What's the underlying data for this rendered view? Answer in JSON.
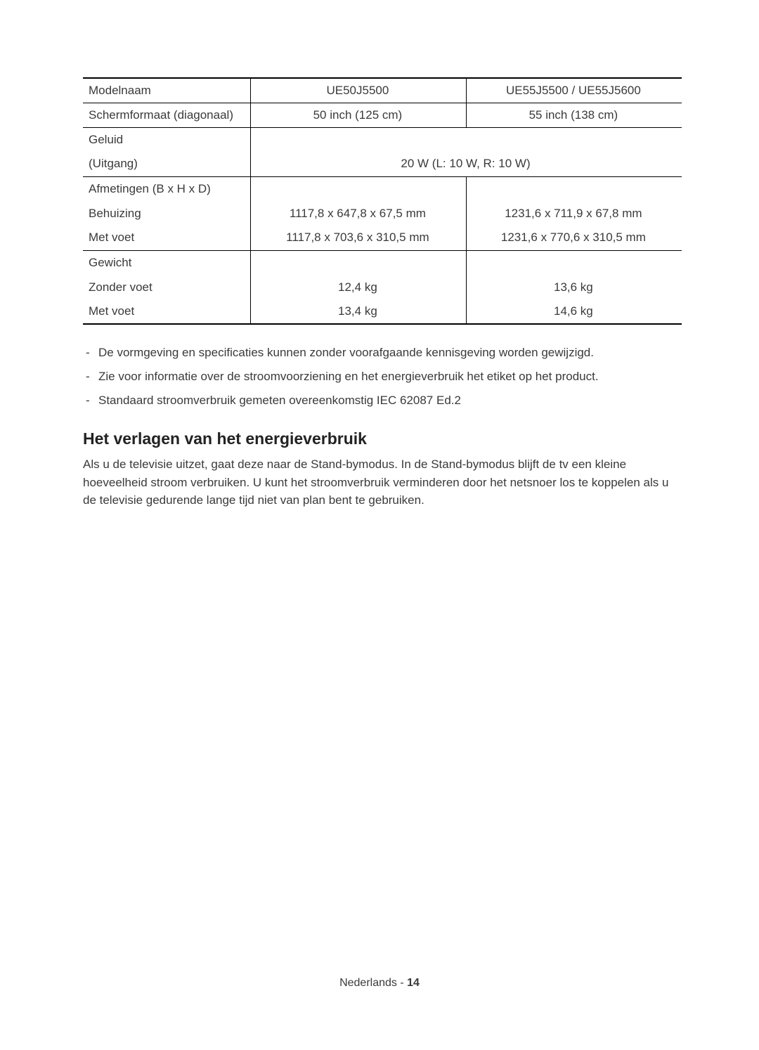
{
  "table": {
    "rows": {
      "model_name": {
        "label": "Modelnaam",
        "a": "UE50J5500",
        "b": "UE55J5500 / UE55J5600"
      },
      "screen_size": {
        "label": "Schermformaat (diagonaal)",
        "a": "50 inch (125 cm)",
        "b": "55 inch (138 cm)"
      },
      "sound": {
        "label": "Geluid"
      },
      "output": {
        "label": "(Uitgang)",
        "merged": "20 W (L: 10 W, R: 10 W)"
      },
      "dimensions": {
        "label": "Afmetingen (B x H x D)"
      },
      "body": {
        "label": "Behuizing",
        "a": "1117,8 x 647,8 x 67,5 mm",
        "b": "1231,6 x 711,9 x 67,8 mm"
      },
      "with_stand_d": {
        "label": "Met voet",
        "a": "1117,8 x 703,6 x 310,5 mm",
        "b": "1231,6 x 770,6 x 310,5 mm"
      },
      "weight": {
        "label": "Gewicht"
      },
      "no_stand_w": {
        "label": "Zonder voet",
        "a": "12,4 kg",
        "b": "13,6 kg"
      },
      "with_stand_w": {
        "label": "Met voet",
        "a": "13,4 kg",
        "b": "14,6 kg"
      }
    }
  },
  "notes": [
    "De vormgeving en specificaties kunnen zonder voorafgaande kennisgeving worden gewijzigd.",
    "Zie voor informatie over de stroomvoorziening en het energieverbruik het etiket op het product.",
    "Standaard stroomverbruik gemeten overeenkomstig IEC 62087 Ed.2"
  ],
  "section": {
    "heading": "Het verlagen van het energieverbruik",
    "body": "Als u de televisie uitzet, gaat deze naar de Stand-bymodus. In de Stand-bymodus blijft de tv een kleine hoeveelheid stroom verbruiken. U kunt het stroomverbruik verminderen door het netsnoer los te koppelen als u de televisie gedurende lange tijd niet van plan bent te gebruiken."
  },
  "footer": {
    "language": "Nederlands - ",
    "page": "14"
  }
}
